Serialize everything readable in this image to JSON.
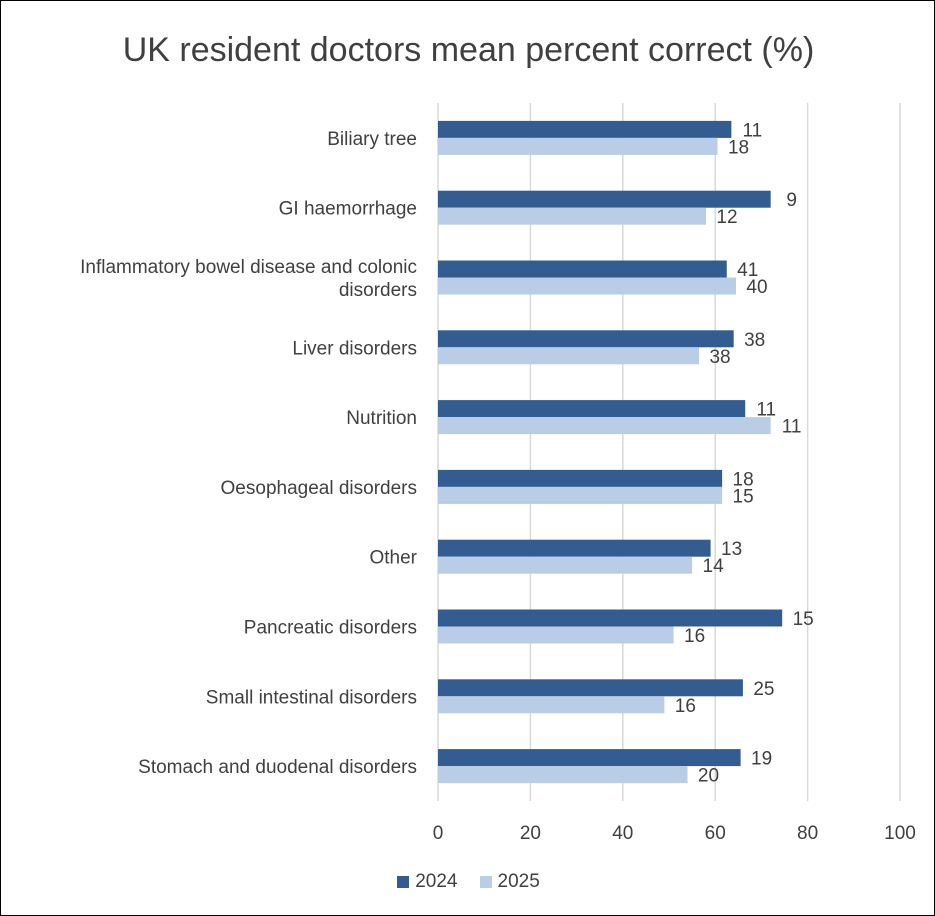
{
  "chart_data": {
    "type": "bar",
    "orientation": "horizontal",
    "title": "UK resident doctors mean percent correct (%)",
    "categories": [
      "Biliary tree",
      "GI haemorrhage",
      "Inflammatory bowel disease and colonic disorders",
      "Liver disorders",
      "Nutrition",
      "Oesophageal disorders",
      "Other",
      "Pancreatic disorders",
      "Small intestinal disorders",
      "Stomach and duodenal disorders"
    ],
    "series": [
      {
        "name": "2024",
        "color": "#335c91",
        "values": [
          63.5,
          72,
          62.5,
          64,
          66.5,
          61.5,
          59,
          74.5,
          66,
          65.5
        ],
        "labels": [
          "11",
          "9",
          "41",
          "38",
          "11",
          "18",
          "13",
          "15",
          "25",
          "19"
        ]
      },
      {
        "name": "2025",
        "color": "#b9cde6",
        "values": [
          60.5,
          58,
          64.5,
          56.5,
          72,
          61.5,
          55,
          51,
          49,
          54
        ],
        "labels": [
          "18",
          "12",
          "40",
          "38",
          "11",
          "15",
          "14",
          "16",
          "16",
          "20"
        ]
      }
    ],
    "xlim": [
      0,
      100
    ],
    "xticks": [
      "0",
      "20",
      "40",
      "60",
      "80",
      "100"
    ],
    "grid": true,
    "legend_position": "bottom"
  }
}
